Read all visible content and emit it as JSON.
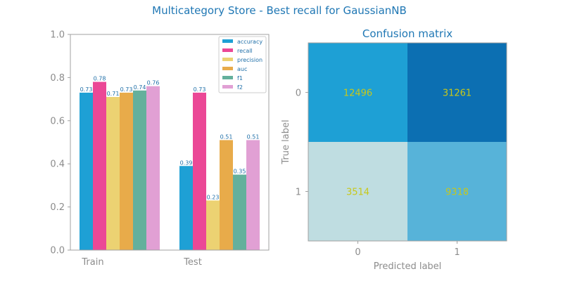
{
  "title": "Multicategory Store - Best recall for GaussianNB",
  "chart_data": [
    {
      "type": "bar",
      "categories": [
        "Train",
        "Test"
      ],
      "series": [
        {
          "name": "accuracy",
          "values": [
            0.73,
            0.39
          ],
          "labels": [
            "0.73",
            "0.39"
          ],
          "color": "#1ea0d5"
        },
        {
          "name": "recall",
          "values": [
            0.78,
            0.73
          ],
          "labels": [
            "0.78",
            "0.73"
          ],
          "color": "#eb4896"
        },
        {
          "name": "precision",
          "values": [
            0.71,
            0.23
          ],
          "labels": [
            "0.71",
            "0.23"
          ],
          "color": "#ecd272"
        },
        {
          "name": "auc",
          "values": [
            0.73,
            0.51
          ],
          "labels": [
            "0.73",
            "0.51"
          ],
          "color": "#e8ab4a"
        },
        {
          "name": "f1",
          "values": [
            0.74,
            0.35
          ],
          "labels": [
            "0.74",
            "0.35"
          ],
          "color": "#64b09c"
        },
        {
          "name": "f2",
          "values": [
            0.76,
            0.51
          ],
          "labels": [
            "0.76",
            "0.51"
          ],
          "color": "#e1a0d4"
        }
      ],
      "ylim": [
        0,
        1.0
      ],
      "yticks": [
        "0.0",
        "0.2",
        "0.4",
        "0.6",
        "0.8",
        "1.0"
      ],
      "legend_position": "top-right",
      "grid": false
    },
    {
      "type": "heatmap",
      "title": "Confusion matrix",
      "xlabel": "Predicted label",
      "ylabel": "True label",
      "xticks": [
        "0",
        "1"
      ],
      "yticks": [
        "0",
        "1"
      ],
      "values": [
        [
          12496,
          31261
        ],
        [
          3514,
          9318
        ]
      ],
      "labels": [
        [
          "12496",
          "31261"
        ],
        [
          "3514",
          "9318"
        ]
      ],
      "colors": [
        [
          "#1ea0d5",
          "#0c6fb2"
        ],
        [
          "#bfdde1",
          "#57b3d9"
        ]
      ]
    }
  ]
}
